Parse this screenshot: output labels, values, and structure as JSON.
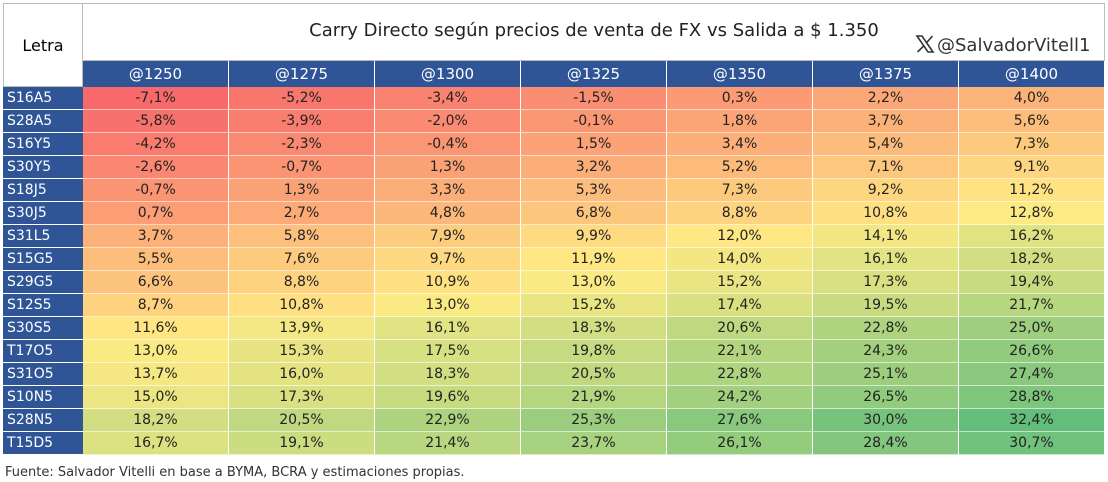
{
  "header": {
    "row_label": "Letra",
    "title": "Carry Directo según precios de venta de FX vs Salida a $ 1.350",
    "handle": "@SalvadorVitell1"
  },
  "table": {
    "columns": [
      "@1250",
      "@1275",
      "@1300",
      "@1325",
      "@1350",
      "@1375",
      "@1400"
    ],
    "rows": [
      {
        "label": "S16A5",
        "cells": [
          "-7,1%",
          "-5,2%",
          "-3,4%",
          "-1,5%",
          "0,3%",
          "2,2%",
          "4,0%"
        ]
      },
      {
        "label": "S28A5",
        "cells": [
          "-5,8%",
          "-3,9%",
          "-2,0%",
          "-0,1%",
          "1,8%",
          "3,7%",
          "5,6%"
        ]
      },
      {
        "label": "S16Y5",
        "cells": [
          "-4,2%",
          "-2,3%",
          "-0,4%",
          "1,5%",
          "3,4%",
          "5,4%",
          "7,3%"
        ]
      },
      {
        "label": "S30Y5",
        "cells": [
          "-2,6%",
          "-0,7%",
          "1,3%",
          "3,2%",
          "5,2%",
          "7,1%",
          "9,1%"
        ]
      },
      {
        "label": "S18J5",
        "cells": [
          "-0,7%",
          "1,3%",
          "3,3%",
          "5,3%",
          "7,3%",
          "9,2%",
          "11,2%"
        ]
      },
      {
        "label": "S30J5",
        "cells": [
          "0,7%",
          "2,7%",
          "4,8%",
          "6,8%",
          "8,8%",
          "10,8%",
          "12,8%"
        ]
      },
      {
        "label": "S31L5",
        "cells": [
          "3,7%",
          "5,8%",
          "7,9%",
          "9,9%",
          "12,0%",
          "14,1%",
          "16,2%"
        ]
      },
      {
        "label": "S15G5",
        "cells": [
          "5,5%",
          "7,6%",
          "9,7%",
          "11,9%",
          "14,0%",
          "16,1%",
          "18,2%"
        ]
      },
      {
        "label": "S29G5",
        "cells": [
          "6,6%",
          "8,8%",
          "10,9%",
          "13,0%",
          "15,2%",
          "17,3%",
          "19,4%"
        ]
      },
      {
        "label": "S12S5",
        "cells": [
          "8,7%",
          "10,8%",
          "13,0%",
          "15,2%",
          "17,4%",
          "19,5%",
          "21,7%"
        ]
      },
      {
        "label": "S30S5",
        "cells": [
          "11,6%",
          "13,9%",
          "16,1%",
          "18,3%",
          "20,6%",
          "22,8%",
          "25,0%"
        ]
      },
      {
        "label": "T17O5",
        "cells": [
          "13,0%",
          "15,3%",
          "17,5%",
          "19,8%",
          "22,1%",
          "24,3%",
          "26,6%"
        ]
      },
      {
        "label": "S31O5",
        "cells": [
          "13,7%",
          "16,0%",
          "18,3%",
          "20,5%",
          "22,8%",
          "25,1%",
          "27,4%"
        ]
      },
      {
        "label": "S10N5",
        "cells": [
          "15,0%",
          "17,3%",
          "19,6%",
          "21,9%",
          "24,2%",
          "26,5%",
          "28,8%"
        ]
      },
      {
        "label": "S28N5",
        "cells": [
          "18,2%",
          "20,5%",
          "22,9%",
          "25,3%",
          "27,6%",
          "30,0%",
          "32,4%"
        ]
      },
      {
        "label": "T15D5",
        "cells": [
          "16,7%",
          "19,1%",
          "21,4%",
          "23,7%",
          "26,1%",
          "28,4%",
          "30,7%"
        ]
      }
    ]
  },
  "footer": "Fuente: Salvador Vitelli en base a BYMA, BCRA y estimaciones propias."
}
